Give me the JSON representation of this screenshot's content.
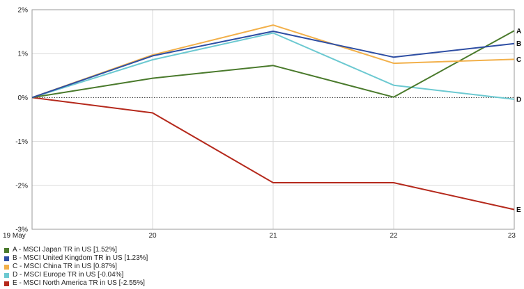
{
  "chart_data": {
    "type": "line",
    "x": [
      "19 May",
      "20",
      "21",
      "22",
      "23"
    ],
    "ylim": [
      -3,
      2
    ],
    "yticks": [
      {
        "value": 2,
        "label": "2%"
      },
      {
        "value": 1,
        "label": "1%"
      },
      {
        "value": 0,
        "label": "0%"
      },
      {
        "value": -1,
        "label": "-1%"
      },
      {
        "value": -2,
        "label": "-2%"
      },
      {
        "value": -3,
        "label": "-3%"
      }
    ],
    "grid": true,
    "zero_line": "dotted",
    "legend_position": "bottom-left",
    "series": [
      {
        "letter": "A",
        "name": "A - MSCI Japan TR in US [1.52%]",
        "color": "#4a7a2c",
        "values": [
          0,
          0.44,
          0.73,
          0.01,
          1.52
        ]
      },
      {
        "letter": "B",
        "name": "B - MSCI United Kingdom TR in US [1.23%]",
        "color": "#2e4ea3",
        "values": [
          0,
          0.95,
          1.51,
          0.92,
          1.23
        ]
      },
      {
        "letter": "C",
        "name": "C - MSCI China TR in US [0.87%]",
        "color": "#f2b04a",
        "values": [
          0,
          0.97,
          1.65,
          0.78,
          0.87
        ]
      },
      {
        "letter": "D",
        "name": "D - MSCI Europe TR in US [-0.04%]",
        "color": "#6cc9d1",
        "values": [
          0,
          0.86,
          1.47,
          0.28,
          -0.04
        ]
      },
      {
        "letter": "E",
        "name": "E - MSCI North America TR in US [-2.55%]",
        "color": "#b5291c",
        "values": [
          0,
          -0.35,
          -1.94,
          -1.94,
          -2.55
        ]
      }
    ]
  }
}
